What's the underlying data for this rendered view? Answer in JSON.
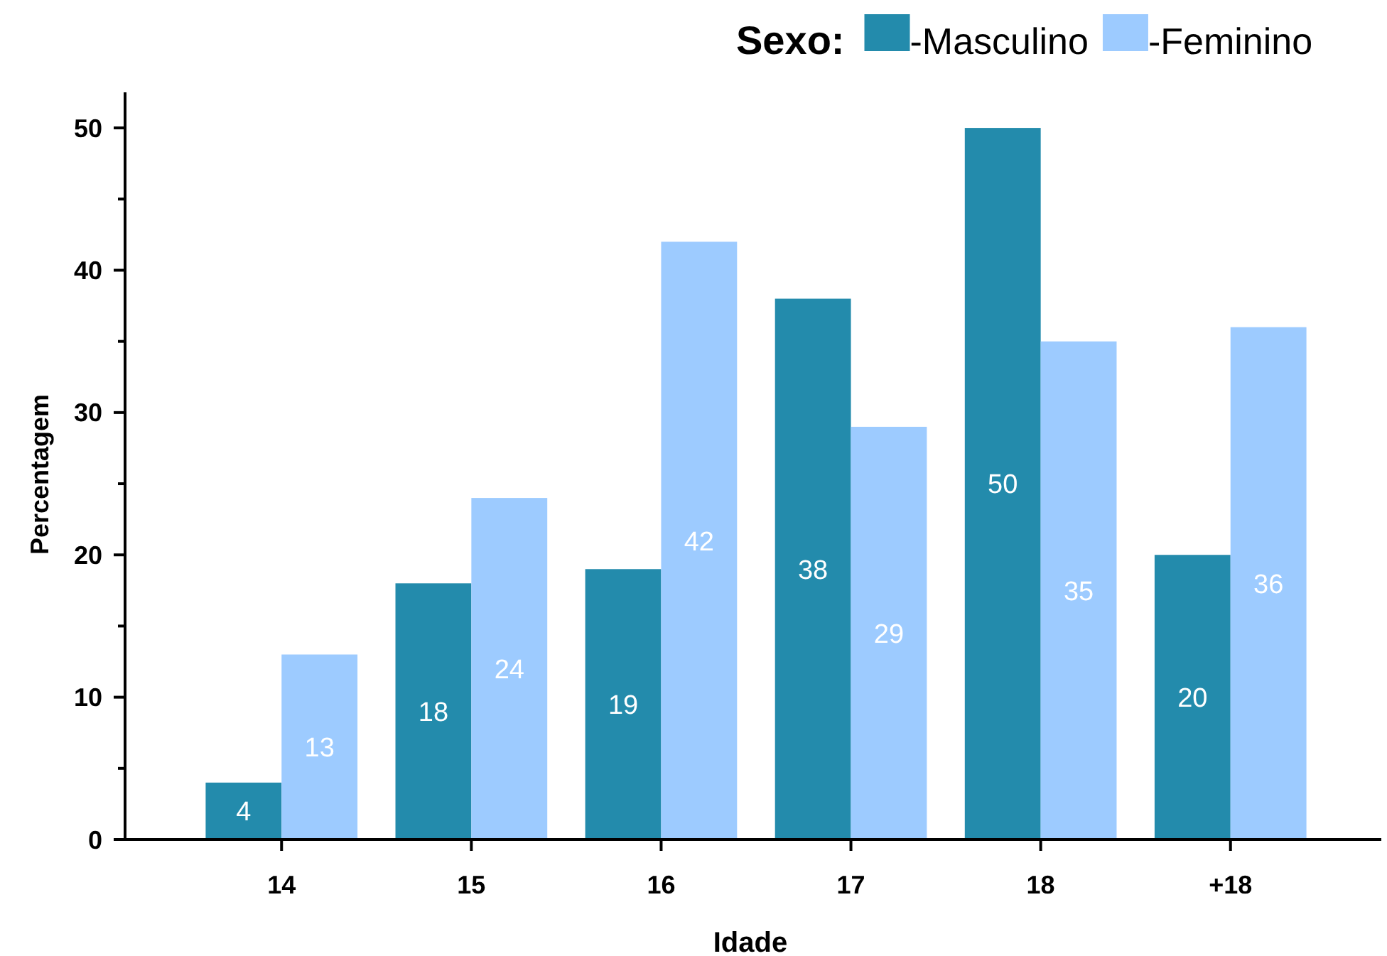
{
  "chart_data": {
    "type": "bar",
    "xlabel": "Idade",
    "ylabel": "Percentagem",
    "legend_title": "Sexo:",
    "categories": [
      "14",
      "15",
      "16",
      "17",
      "18",
      "+18"
    ],
    "series": [
      {
        "name": "-Masculino",
        "color": "#238bac",
        "values": [
          4,
          18,
          19,
          38,
          50,
          20
        ]
      },
      {
        "name": "-Feminino",
        "color": "#9dcbff",
        "values": [
          13,
          24,
          42,
          29,
          35,
          36
        ]
      }
    ],
    "ylim": [
      0,
      52.5
    ],
    "yticks": [
      0,
      {
        "value": 5,
        "label": null
      },
      10,
      {
        "value": 15,
        "label": null
      },
      20,
      {
        "value": 25,
        "label": null
      },
      30,
      {
        "value": 35,
        "label": null
      },
      40,
      {
        "value": 45,
        "label": null
      },
      50
    ],
    "data_labels": true,
    "legend": "top right",
    "grid": false
  }
}
